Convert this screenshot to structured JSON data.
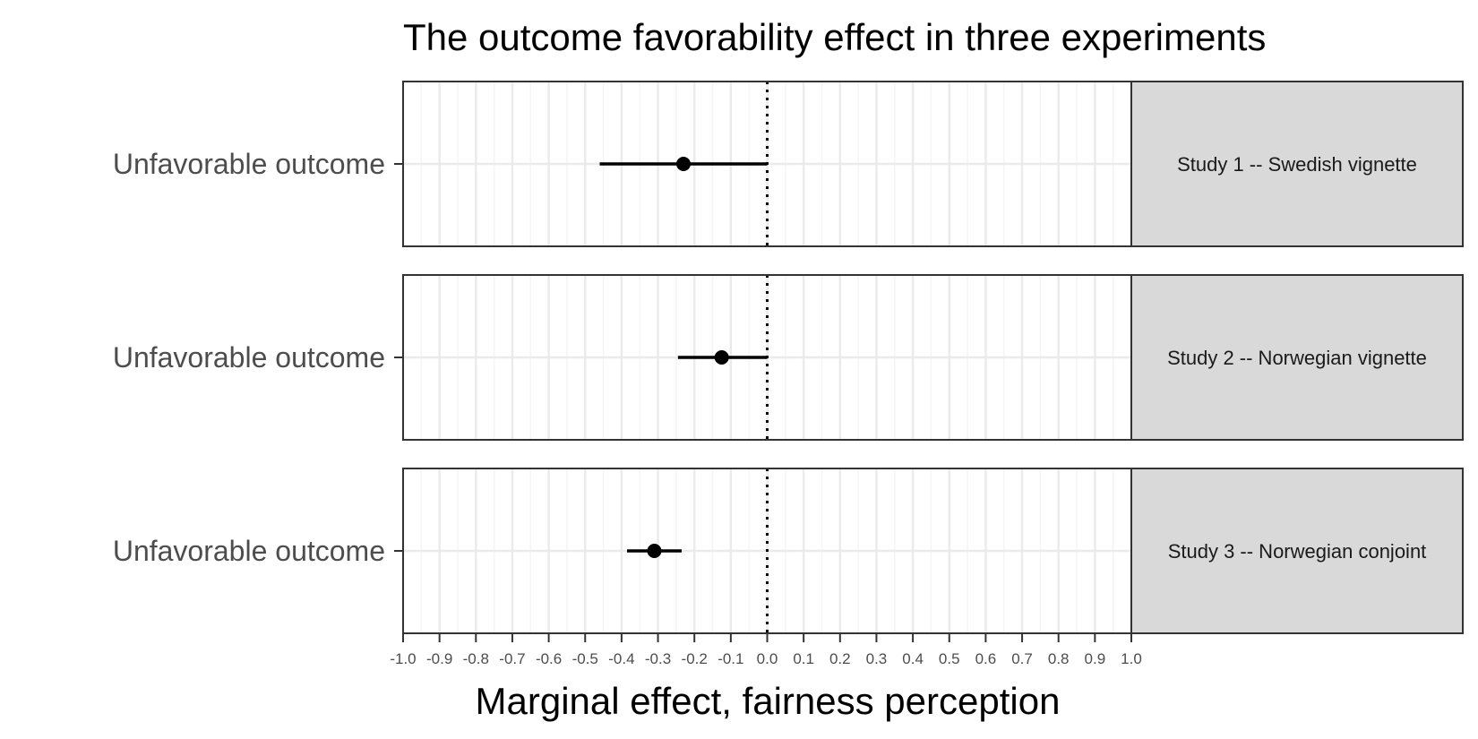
{
  "chart_data": {
    "type": "forest",
    "title": "The outcome favorability effect in three experiments",
    "xlabel": "Marginal effect, fairness perception",
    "xlim": [
      -1.0,
      1.0
    ],
    "x_ticks": [
      "-1.0",
      "-0.9",
      "-0.8",
      "-0.7",
      "-0.6",
      "-0.5",
      "-0.4",
      "-0.3",
      "-0.2",
      "-0.1",
      "0.0",
      "0.1",
      "0.2",
      "0.3",
      "0.4",
      "0.5",
      "0.6",
      "0.7",
      "0.8",
      "0.9",
      "1.0"
    ],
    "x_tick_values": [
      -1.0,
      -0.9,
      -0.8,
      -0.7,
      -0.6,
      -0.5,
      -0.4,
      -0.3,
      -0.2,
      -0.1,
      0.0,
      0.1,
      0.2,
      0.3,
      0.4,
      0.5,
      0.6,
      0.7,
      0.8,
      0.9,
      1.0
    ],
    "reference_line": 0.0,
    "grid": true,
    "panels": [
      {
        "strip": "Study 1 -- Swedish vignette",
        "term": "Unfavorable outcome",
        "estimate": -0.23,
        "ci": [
          -0.46,
          0.0
        ]
      },
      {
        "strip": "Study 2 -- Norwegian vignette",
        "term": "Unfavorable outcome",
        "estimate": -0.125,
        "ci": [
          -0.245,
          0.0
        ]
      },
      {
        "strip": "Study 3 -- Norwegian conjoint",
        "term": "Unfavorable outcome",
        "estimate": -0.31,
        "ci": [
          -0.385,
          -0.235
        ]
      }
    ]
  },
  "colors": {
    "panel_border": "#333333",
    "grid_major": "#ebebeb",
    "grid_minor": "#f5f5f5",
    "strip_fill": "#d9d9d9",
    "point": "#000000"
  }
}
